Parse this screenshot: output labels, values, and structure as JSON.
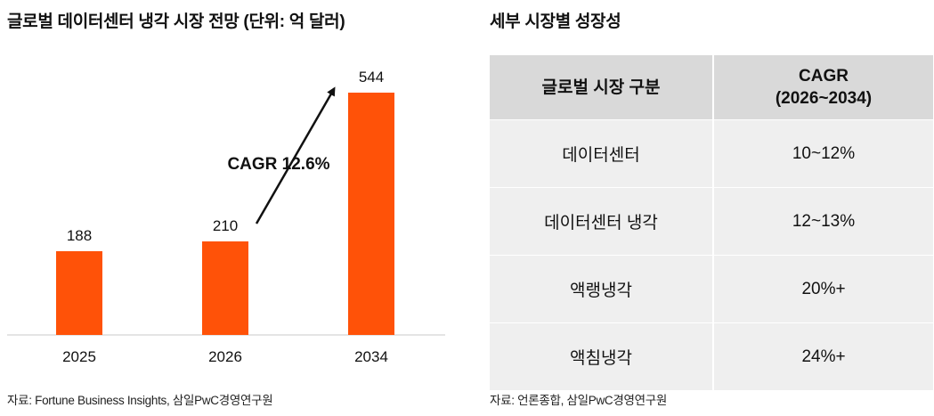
{
  "left_title": "글로벌 데이터센터 냉각 시장 전망 (단위: 억 달러)",
  "right_title": "세부 시장별 성장성",
  "left_source": "자료: Fortune Business Insights, 삼일PwC경영연구원",
  "right_source": "자료: 언론종합, 삼일PwC경영연구원",
  "colors": {
    "bar": "#FF5208",
    "axis": "#c8c8c8",
    "header_bg": "#d9d9d9",
    "cell_bg": "#efefef"
  },
  "chart_data": {
    "type": "bar",
    "categories": [
      "2025",
      "2026",
      "2034"
    ],
    "values": [
      188,
      210,
      544
    ],
    "data_labels": [
      "188",
      "210",
      "544"
    ],
    "annotation": "CAGR 12.6%",
    "ylim": [
      0,
      600
    ],
    "grid": false,
    "legend": "none"
  },
  "table": {
    "headers": [
      "글로벌 시장 구분",
      "CAGR",
      "(2026~2034)"
    ],
    "rows": [
      [
        "데이터센터",
        "10~12%"
      ],
      [
        "데이터센터 냉각",
        "12~13%"
      ],
      [
        "액랭냉각",
        "20%+"
      ],
      [
        "액침냉각",
        "24%+"
      ]
    ]
  }
}
